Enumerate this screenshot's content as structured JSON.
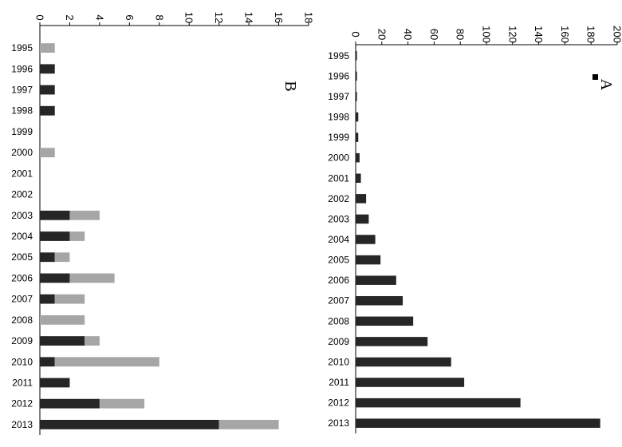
{
  "chart_data": [
    {
      "panel_label": "A",
      "type": "bar",
      "orientation": "horizontal",
      "categories": [
        "1995",
        "1996",
        "1997",
        "1998",
        "1999",
        "2000",
        "2001",
        "2002",
        "2003",
        "2004",
        "2005",
        "2006",
        "2007",
        "2008",
        "2009",
        "2010",
        "2011",
        "2012",
        "2013"
      ],
      "series": [
        {
          "values": [
            1,
            1,
            1,
            2,
            2,
            3,
            4,
            8,
            10,
            15,
            19,
            31,
            36,
            44,
            55,
            73,
            83,
            126,
            187
          ],
          "color": "#262626"
        }
      ],
      "xlim": [
        0,
        200
      ],
      "xticks": [
        0,
        20,
        40,
        60,
        80,
        100,
        120,
        140,
        160,
        180,
        200
      ],
      "axis_position": "top",
      "grid": false
    },
    {
      "panel_label": "B",
      "type": "bar",
      "orientation": "horizontal",
      "stacked": true,
      "categories": [
        "1995",
        "1996",
        "1997",
        "1998",
        "1999",
        "2000",
        "2001",
        "2002",
        "2003",
        "2004",
        "2005",
        "2006",
        "2007",
        "2008",
        "2009",
        "2010",
        "2011",
        "2012",
        "2013"
      ],
      "series": [
        {
          "values": [
            0,
            1,
            1,
            1,
            0,
            0,
            0,
            0,
            2,
            2,
            1,
            2,
            1,
            0,
            3,
            1,
            2,
            4,
            12
          ],
          "color": "#262626"
        },
        {
          "values": [
            1,
            0,
            0,
            0,
            0,
            1,
            0,
            0,
            2,
            1,
            1,
            3,
            2,
            3,
            1,
            7,
            0,
            3,
            4
          ],
          "color": "#a6a6a6"
        }
      ],
      "xlim": [
        0,
        18
      ],
      "xticks": [
        0,
        2,
        4,
        6,
        8,
        10,
        12,
        14,
        16,
        18
      ],
      "axis_position": "top",
      "grid": false
    }
  ]
}
